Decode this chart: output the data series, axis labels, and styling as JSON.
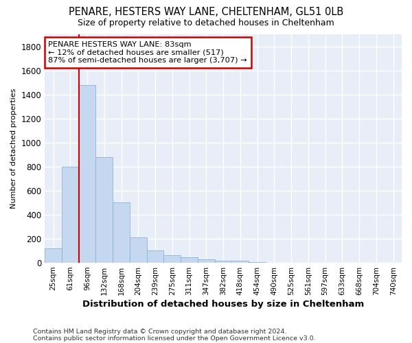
{
  "title": "PENARE, HESTERS WAY LANE, CHELTENHAM, GL51 0LB",
  "subtitle": "Size of property relative to detached houses in Cheltenham",
  "xlabel": "Distribution of detached houses by size in Cheltenham",
  "ylabel": "Number of detached properties",
  "categories": [
    "25sqm",
    "61sqm",
    "96sqm",
    "132sqm",
    "168sqm",
    "204sqm",
    "239sqm",
    "275sqm",
    "311sqm",
    "347sqm",
    "382sqm",
    "418sqm",
    "454sqm",
    "490sqm",
    "525sqm",
    "561sqm",
    "597sqm",
    "633sqm",
    "668sqm",
    "704sqm",
    "740sqm"
  ],
  "values": [
    120,
    800,
    1480,
    880,
    500,
    210,
    105,
    65,
    48,
    30,
    20,
    18,
    5,
    3,
    2,
    1,
    1,
    0,
    0,
    0,
    0
  ],
  "bar_color": "#c5d8f0",
  "bar_edge_color": "#8ab4d8",
  "background_color": "#e8eef8",
  "grid_color": "#ffffff",
  "fig_background": "#ffffff",
  "vline_color": "#cc0000",
  "vline_x_idx": 2,
  "annotation_line1": "PENARE HESTERS WAY LANE: 83sqm",
  "annotation_line2": "← 12% of detached houses are smaller (517)",
  "annotation_line3": "87% of semi-detached houses are larger (3,707) →",
  "annotation_box_color": "#ffffff",
  "annotation_box_edge": "#cc0000",
  "footnote1": "Contains HM Land Registry data © Crown copyright and database right 2024.",
  "footnote2": "Contains public sector information licensed under the Open Government Licence v3.0.",
  "ylim": [
    0,
    1900
  ],
  "yticks": [
    0,
    200,
    400,
    600,
    800,
    1000,
    1200,
    1400,
    1600,
    1800
  ],
  "figsize": [
    6.0,
    5.0
  ],
  "dpi": 100
}
